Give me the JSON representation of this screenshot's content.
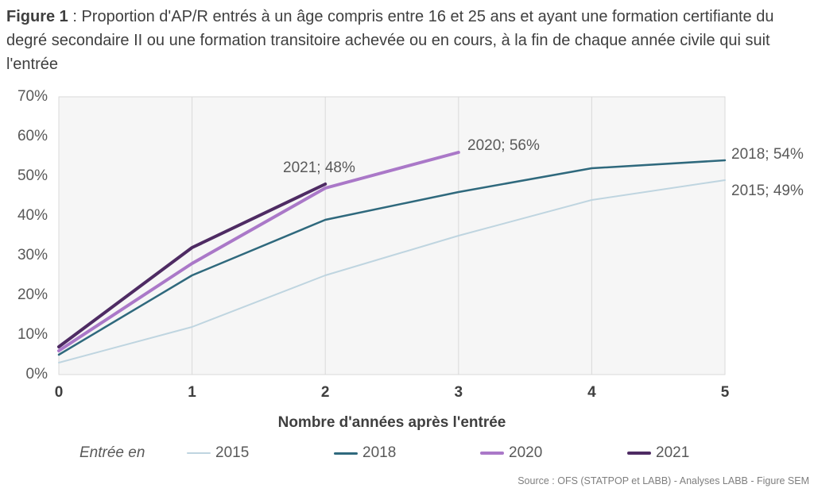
{
  "figure_title": {
    "prefix": "Figure 1",
    "rest": " : Proportion d'AP/R entrés à un âge compris entre 16 et 25 ans et ayant une formation certifiante du degré secondaire II ou une formation transitoire achevée ou en cours, à la fin de chaque année civile qui suit l'entrée"
  },
  "chart_data": {
    "type": "line",
    "x": [
      0,
      1,
      2,
      3,
      4,
      5
    ],
    "xlim": [
      0,
      5
    ],
    "ylim": [
      0,
      70
    ],
    "xlabel": "Nombre d'années après l'entrée",
    "grid": "vertical-only",
    "series": [
      {
        "name": "2015",
        "color": "#bfd5e0",
        "width": 2,
        "values": [
          3,
          12,
          25,
          35,
          44,
          49
        ]
      },
      {
        "name": "2018",
        "color": "#2f697d",
        "width": 2.5,
        "values": [
          5,
          25,
          39,
          46,
          52,
          54
        ]
      },
      {
        "name": "2020",
        "color": "#aa78c8",
        "width": 4,
        "values": [
          6,
          28,
          47,
          56
        ]
      },
      {
        "name": "2021",
        "color": "#4e2b63",
        "width": 4,
        "values": [
          7,
          32,
          48
        ]
      }
    ],
    "yticks": [
      {
        "v": 0,
        "label": "0%"
      },
      {
        "v": 10,
        "label": "10%"
      },
      {
        "v": 20,
        "label": "20%"
      },
      {
        "v": 30,
        "label": "30%"
      },
      {
        "v": 40,
        "label": "40%"
      },
      {
        "v": 50,
        "label": "50%"
      },
      {
        "v": 60,
        "label": "60%"
      },
      {
        "v": 70,
        "label": "70%"
      }
    ],
    "xticks": [
      {
        "v": 0,
        "label": "0"
      },
      {
        "v": 1,
        "label": "1"
      },
      {
        "v": 2,
        "label": "2"
      },
      {
        "v": 3,
        "label": "3"
      },
      {
        "v": 4,
        "label": "4"
      },
      {
        "v": 5,
        "label": "5"
      }
    ],
    "point_labels": [
      {
        "series": "2021",
        "text": "2021; 48%"
      },
      {
        "series": "2020",
        "text": "2020; 56%"
      },
      {
        "series": "2018",
        "text": "2018; 54%"
      },
      {
        "series": "2015",
        "text": "2015; 49%"
      }
    ],
    "legend": {
      "title": "Entrée en",
      "entries": [
        "2015",
        "2018",
        "2020",
        "2021"
      ],
      "position": "bottom"
    }
  },
  "source": "Source : OFS (STATPOP et LABB) - Analyses LABB - Figure SEM",
  "colors": {
    "plot_fill": "#f6f6f6",
    "grid": "#d9d9d9",
    "title_text": "#3f3f3f",
    "tick_text": "#595959",
    "source_text": "#7f7f7f"
  }
}
